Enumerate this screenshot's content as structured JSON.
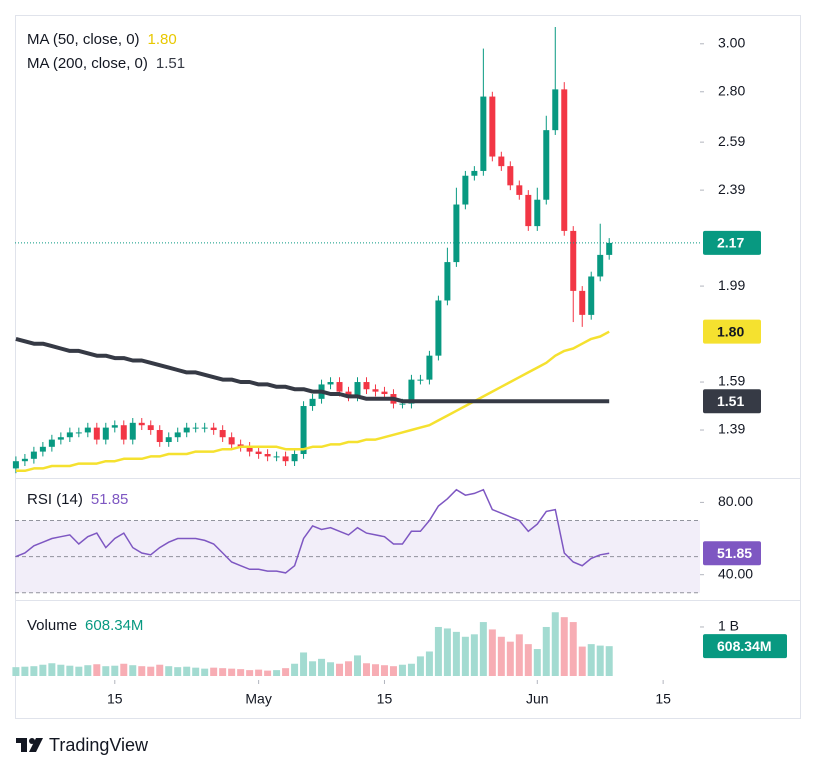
{
  "brand": "TradingView",
  "chart_data": [
    {
      "type": "candlestick",
      "open": [
        1.23,
        1.26,
        1.27,
        1.3,
        1.32,
        1.35,
        1.36,
        1.38,
        1.38,
        1.4,
        1.35,
        1.4,
        1.41,
        1.35,
        1.42,
        1.41,
        1.39,
        1.34,
        1.36,
        1.38,
        1.4,
        1.4,
        1.4,
        1.39,
        1.36,
        1.33,
        1.32,
        1.3,
        1.29,
        1.28,
        1.28,
        1.26,
        1.29,
        1.49,
        1.52,
        1.58,
        1.59,
        1.55,
        1.53,
        1.59,
        1.56,
        1.55,
        1.54,
        1.5,
        1.5,
        1.6,
        1.6,
        1.7,
        1.93,
        2.09,
        2.33,
        2.45,
        2.47,
        2.78,
        2.53,
        2.49,
        2.41,
        2.37,
        2.24,
        2.35,
        2.64,
        2.81,
        2.22,
        1.97,
        1.87,
        2.03,
        2.12
      ],
      "high": [
        1.28,
        1.29,
        1.32,
        1.34,
        1.37,
        1.38,
        1.4,
        1.4,
        1.42,
        1.42,
        1.42,
        1.43,
        1.43,
        1.44,
        1.44,
        1.43,
        1.41,
        1.38,
        1.4,
        1.42,
        1.42,
        1.42,
        1.42,
        1.41,
        1.38,
        1.35,
        1.34,
        1.32,
        1.31,
        1.3,
        1.3,
        1.31,
        1.51,
        1.54,
        1.6,
        1.61,
        1.61,
        1.57,
        1.61,
        1.61,
        1.58,
        1.57,
        1.56,
        1.52,
        1.62,
        1.62,
        1.72,
        1.95,
        2.15,
        2.4,
        2.47,
        2.49,
        2.98,
        2.8,
        2.55,
        2.51,
        2.43,
        2.39,
        2.4,
        2.7,
        3.07,
        2.84,
        2.24,
        1.99,
        2.05,
        2.25,
        2.19
      ],
      "low": [
        1.21,
        1.24,
        1.25,
        1.28,
        1.3,
        1.33,
        1.34,
        1.36,
        1.36,
        1.33,
        1.33,
        1.38,
        1.33,
        1.33,
        1.39,
        1.37,
        1.32,
        1.32,
        1.34,
        1.36,
        1.38,
        1.38,
        1.37,
        1.34,
        1.31,
        1.3,
        1.28,
        1.27,
        1.26,
        1.26,
        1.24,
        1.24,
        1.27,
        1.47,
        1.5,
        1.56,
        1.53,
        1.51,
        1.51,
        1.54,
        1.53,
        1.52,
        1.48,
        1.48,
        1.48,
        1.58,
        1.58,
        1.68,
        1.91,
        2.07,
        2.31,
        2.43,
        2.45,
        2.51,
        2.47,
        2.39,
        2.35,
        2.22,
        2.22,
        2.33,
        2.62,
        2.2,
        1.84,
        1.82,
        1.85,
        2.01,
        2.1
      ],
      "close": [
        1.26,
        1.27,
        1.3,
        1.32,
        1.35,
        1.36,
        1.38,
        1.38,
        1.4,
        1.35,
        1.4,
        1.41,
        1.35,
        1.42,
        1.41,
        1.39,
        1.34,
        1.36,
        1.38,
        1.4,
        1.4,
        1.4,
        1.39,
        1.36,
        1.33,
        1.32,
        1.3,
        1.29,
        1.28,
        1.28,
        1.26,
        1.29,
        1.49,
        1.52,
        1.58,
        1.59,
        1.55,
        1.53,
        1.59,
        1.56,
        1.55,
        1.54,
        1.5,
        1.5,
        1.6,
        1.6,
        1.7,
        1.93,
        2.09,
        2.33,
        2.45,
        2.47,
        2.78,
        2.53,
        2.49,
        2.41,
        2.37,
        2.24,
        2.35,
        2.64,
        2.81,
        2.22,
        1.97,
        1.87,
        2.03,
        2.12,
        2.17
      ],
      "up_color": "#089981",
      "down_color": "#f23645",
      "ylim": [
        1.19,
        3.12
      ],
      "yticks": [
        {
          "value": 3,
          "label": "3.00"
        },
        {
          "value": 2.8,
          "label": "2.80"
        },
        2.59,
        2.39,
        1.99,
        1.59,
        1.39
      ],
      "xlim": [
        -0.1,
        76.1
      ],
      "xticks": [
        {
          "value": 11,
          "label": "15"
        },
        {
          "value": 27,
          "label": "May"
        },
        {
          "value": 41,
          "label": "15"
        },
        {
          "value": 58,
          "label": "Jun"
        },
        {
          "value": 72,
          "label": "15"
        }
      ],
      "series": [
        {
          "name": "MA (50, close, 0)",
          "color": "#f5e12f",
          "last_label": "1.80",
          "values": [
            1.22,
            1.22,
            1.23,
            1.23,
            1.24,
            1.24,
            1.24,
            1.25,
            1.25,
            1.25,
            1.26,
            1.26,
            1.27,
            1.27,
            1.27,
            1.28,
            1.28,
            1.29,
            1.29,
            1.29,
            1.3,
            1.3,
            1.3,
            1.31,
            1.31,
            1.32,
            1.32,
            1.32,
            1.32,
            1.32,
            1.31,
            1.31,
            1.31,
            1.32,
            1.32,
            1.33,
            1.33,
            1.34,
            1.34,
            1.35,
            1.35,
            1.36,
            1.37,
            1.38,
            1.39,
            1.4,
            1.41,
            1.43,
            1.45,
            1.47,
            1.49,
            1.51,
            1.53,
            1.55,
            1.57,
            1.59,
            1.61,
            1.63,
            1.65,
            1.67,
            1.7,
            1.72,
            1.73,
            1.75,
            1.77,
            1.78,
            1.8
          ]
        },
        {
          "name": "MA (200, close, 0)",
          "color": "#363a45",
          "values": [
            1.77,
            1.76,
            1.75,
            1.75,
            1.74,
            1.73,
            1.72,
            1.72,
            1.71,
            1.7,
            1.7,
            1.69,
            1.69,
            1.68,
            1.68,
            1.67,
            1.66,
            1.65,
            1.64,
            1.63,
            1.63,
            1.62,
            1.61,
            1.6,
            1.6,
            1.59,
            1.59,
            1.58,
            1.58,
            1.57,
            1.57,
            1.56,
            1.56,
            1.55,
            1.55,
            1.54,
            1.54,
            1.53,
            1.53,
            1.52,
            1.52,
            1.52,
            1.52,
            1.51,
            1.51,
            1.51,
            1.51,
            1.51,
            1.51,
            1.51,
            1.51,
            1.51,
            1.51,
            1.51,
            1.51,
            1.51,
            1.51,
            1.51,
            1.51,
            1.51,
            1.51,
            1.51,
            1.51,
            1.51,
            1.51,
            1.51,
            1.51
          ]
        }
      ]
    },
    {
      "type": "line",
      "name": "RSI (14)",
      "color": "#7e57c2",
      "values": [
        50,
        52,
        56,
        58,
        60,
        61,
        62,
        57,
        61,
        63,
        55,
        60,
        63,
        55,
        52,
        51,
        55,
        58,
        60,
        60,
        60,
        59,
        57,
        52,
        47,
        45,
        43,
        43,
        42,
        42,
        41,
        45,
        60,
        67,
        65,
        66,
        64,
        62,
        66,
        63,
        62,
        61,
        57,
        57,
        64,
        64,
        70,
        78,
        82,
        87,
        84,
        85,
        87,
        76,
        74,
        72,
        70,
        64,
        68,
        75,
        76,
        52,
        47,
        45,
        49,
        51,
        51.85
      ],
      "ylim": [
        26,
        93.5
      ],
      "yticks": [
        {
          "value": 80,
          "label": "80.00"
        },
        {
          "value": 40,
          "label": "40.00"
        }
      ],
      "levels": [
        70,
        50,
        30
      ]
    },
    {
      "type": "bar",
      "name": "Volume",
      "last_label": "608.34M",
      "values": [
        180000000,
        190000000,
        200000000,
        230000000,
        260000000,
        230000000,
        210000000,
        190000000,
        220000000,
        240000000,
        200000000,
        210000000,
        250000000,
        220000000,
        200000000,
        190000000,
        230000000,
        200000000,
        180000000,
        190000000,
        170000000,
        150000000,
        170000000,
        160000000,
        150000000,
        140000000,
        120000000,
        130000000,
        110000000,
        120000000,
        160000000,
        250000000,
        480000000,
        300000000,
        350000000,
        280000000,
        250000000,
        300000000,
        420000000,
        260000000,
        240000000,
        220000000,
        200000000,
        230000000,
        250000000,
        400000000,
        500000000,
        1000000000,
        970000000,
        900000000,
        800000000,
        850000000,
        1100000000,
        950000000,
        800000000,
        700000000,
        850000000,
        650000000,
        550000000,
        1000000000,
        1300000000,
        1200000000,
        1100000000,
        600000000,
        650000000,
        620000000,
        608340000
      ],
      "up_color": "#a3dbd1",
      "down_color": "#f7adb4",
      "label_color": "#089981",
      "ylim": [
        0,
        1550000000
      ],
      "yticks": [
        {
          "value": 1000000000,
          "label": "1 B"
        }
      ]
    }
  ]
}
